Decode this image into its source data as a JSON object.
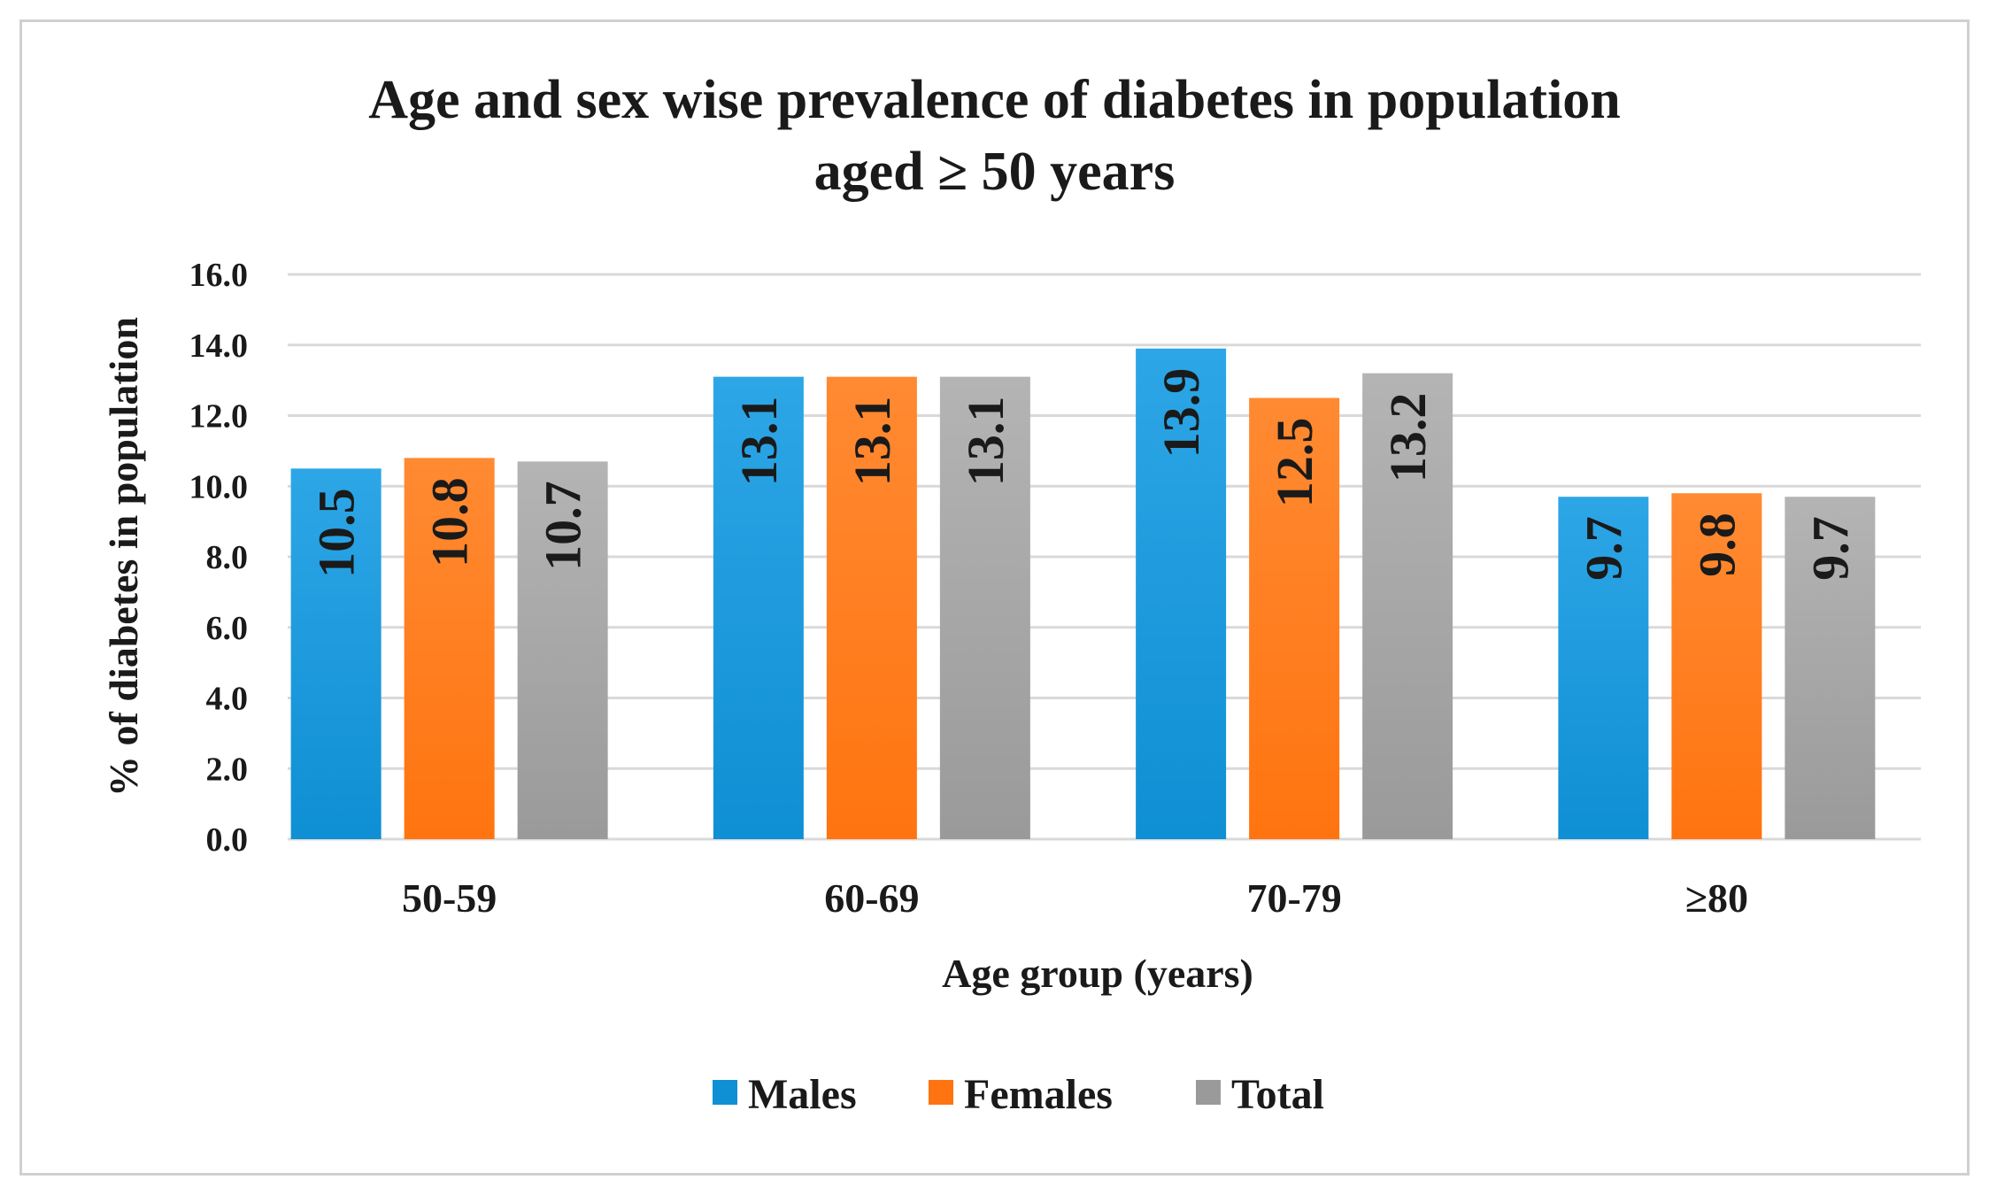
{
  "chart_data": {
    "type": "bar",
    "title_line1": "Age and sex wise prevalence of diabetes in population",
    "title_line2": "aged ≥ 50 years",
    "categories": [
      "50-59",
      "60-69",
      "70-79",
      "≥80"
    ],
    "series": [
      {
        "name": "Males",
        "color": "#0f8fd4",
        "color_light": "#2da6e6",
        "values": [
          10.5,
          13.1,
          13.9,
          9.7
        ],
        "labels": [
          "10.5",
          "13.1",
          "13.9",
          "9.7"
        ]
      },
      {
        "name": "Females",
        "color": "#ff7410",
        "color_light": "#ff8a32",
        "values": [
          10.8,
          13.1,
          12.5,
          9.8
        ],
        "labels": [
          "10.8",
          "13.1",
          "12.5",
          "9.8"
        ]
      },
      {
        "name": "Total",
        "color": "#9a9a9a",
        "color_light": "#b4b4b4",
        "values": [
          10.7,
          13.1,
          13.2,
          9.7
        ],
        "labels": [
          "10.7",
          "13.1",
          "13.2",
          "9.7"
        ]
      }
    ],
    "xlabel": "Age group (years)",
    "ylabel": "% of diabetes in population",
    "ylim": [
      0,
      16
    ],
    "yticks": [
      "0.0",
      "2.0",
      "4.0",
      "6.0",
      "8.0",
      "10.0",
      "12.0",
      "14.0",
      "16.0"
    ],
    "ytick_values": [
      0,
      2,
      4,
      6,
      8,
      10,
      12,
      14,
      16
    ],
    "grid": true,
    "legend_position": "bottom"
  }
}
